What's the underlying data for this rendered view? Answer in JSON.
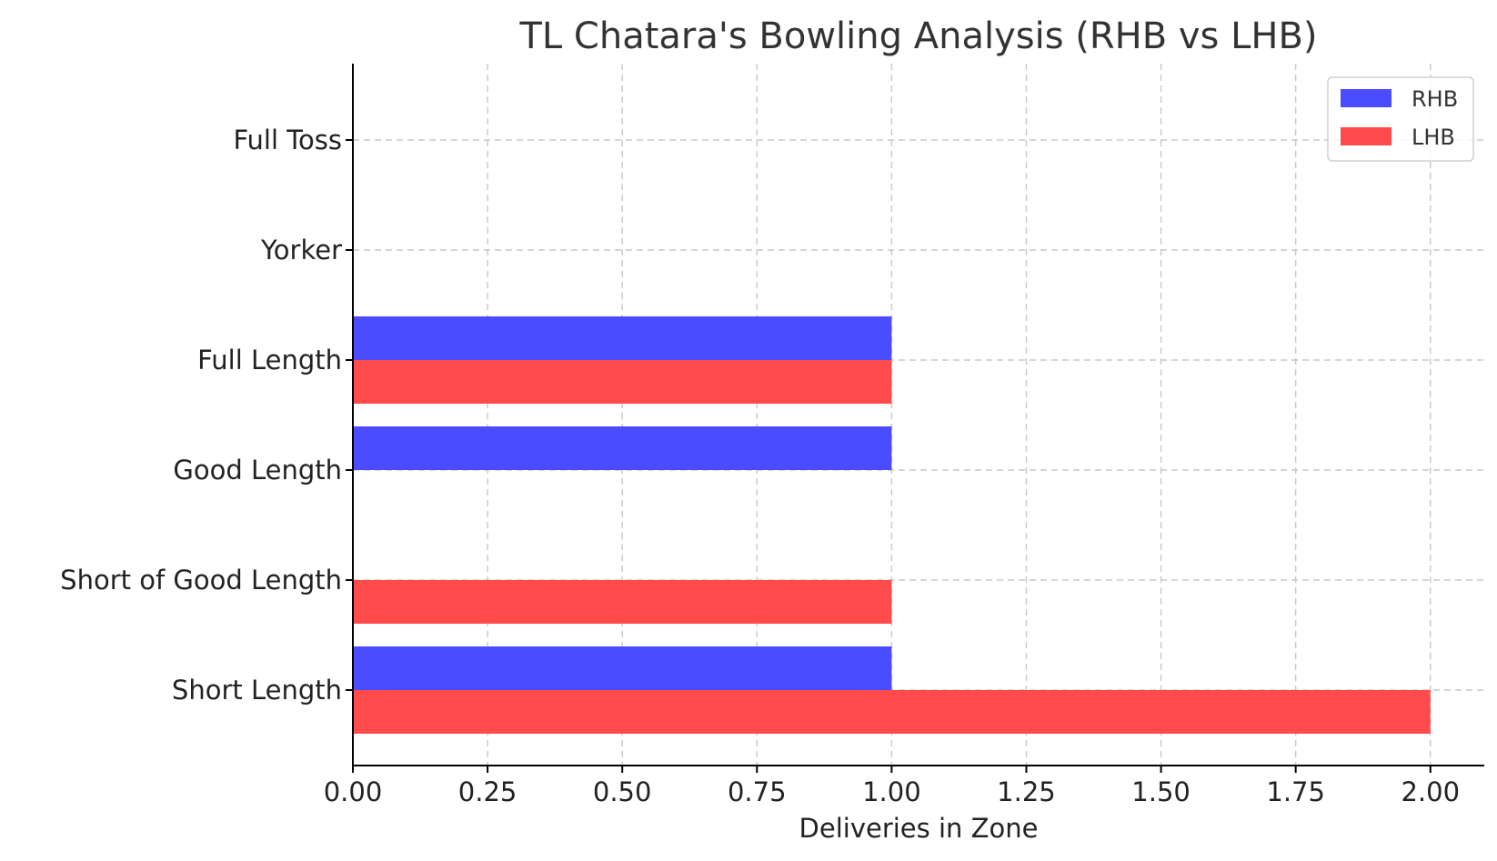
{
  "chart_data": {
    "type": "bar",
    "orientation": "horizontal",
    "title": "TL Chatara's Bowling Analysis (RHB vs LHB)",
    "xlabel": "Deliveries in Zone",
    "ylabel": "",
    "xlim": [
      0,
      2.1
    ],
    "x_ticks": [
      "0.00",
      "0.25",
      "0.50",
      "0.75",
      "1.00",
      "1.25",
      "1.50",
      "1.75",
      "2.00"
    ],
    "categories": [
      "Full Toss",
      "Yorker",
      "Full Length",
      "Good Length",
      "Short of Good Length",
      "Short Length"
    ],
    "series": [
      {
        "name": "RHB",
        "color": "#4b4bff",
        "values": [
          0,
          0,
          1,
          1,
          0,
          1
        ]
      },
      {
        "name": "LHB",
        "color": "#ff4b4b",
        "values": [
          0,
          0,
          1,
          0,
          1,
          2
        ]
      }
    ],
    "grid": true,
    "legend_position": "top-right"
  }
}
